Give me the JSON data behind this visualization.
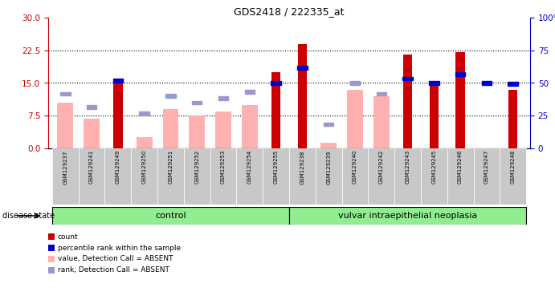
{
  "title": "GDS2418 / 222335_at",
  "samples": [
    "GSM129237",
    "GSM129241",
    "GSM129249",
    "GSM129250",
    "GSM129251",
    "GSM129252",
    "GSM129253",
    "GSM129254",
    "GSM129255",
    "GSM129238",
    "GSM129239",
    "GSM129240",
    "GSM129242",
    "GSM129243",
    "GSM129245",
    "GSM129246",
    "GSM129247",
    "GSM129248"
  ],
  "control_count": 9,
  "group_labels": [
    "control",
    "vulvar intraepithelial neoplasia"
  ],
  "red_bars": [
    0,
    0,
    15.2,
    0,
    0,
    0,
    0,
    0,
    17.5,
    24.0,
    0,
    0,
    0,
    21.5,
    14.5,
    22.0,
    0,
    13.5
  ],
  "pink_bars": [
    10.5,
    6.8,
    0,
    2.5,
    9.0,
    7.5,
    8.5,
    10.0,
    0,
    0,
    1.2,
    13.5,
    12.0,
    0,
    0,
    0,
    0,
    0
  ],
  "blue_squares_y": [
    null,
    null,
    15.5,
    null,
    null,
    null,
    null,
    null,
    15.0,
    18.5,
    null,
    null,
    null,
    16.0,
    15.0,
    17.0,
    15.0,
    14.8
  ],
  "lblue_squares_y": [
    12.5,
    9.5,
    null,
    8.0,
    12.0,
    10.5,
    11.5,
    13.0,
    null,
    null,
    5.5,
    15.0,
    12.5,
    null,
    null,
    null,
    null,
    null
  ],
  "ylim_left": [
    0,
    30
  ],
  "ylim_right": [
    0,
    100
  ],
  "yticks_left": [
    0,
    7.5,
    15,
    22.5,
    30
  ],
  "yticks_right": [
    0,
    25,
    50,
    75,
    100
  ],
  "red_color": "#cc0000",
  "pink_color": "#ffb0b0",
  "blue_color": "#0000cc",
  "lightblue_color": "#9999cc",
  "group_bg_color": "#90ee90",
  "sample_bg_color": "#c8c8c8",
  "legend_items": [
    "count",
    "percentile rank within the sample",
    "value, Detection Call = ABSENT",
    "rank, Detection Call = ABSENT"
  ],
  "legend_colors": [
    "#cc0000",
    "#0000cc",
    "#ffb0b0",
    "#9999cc"
  ]
}
